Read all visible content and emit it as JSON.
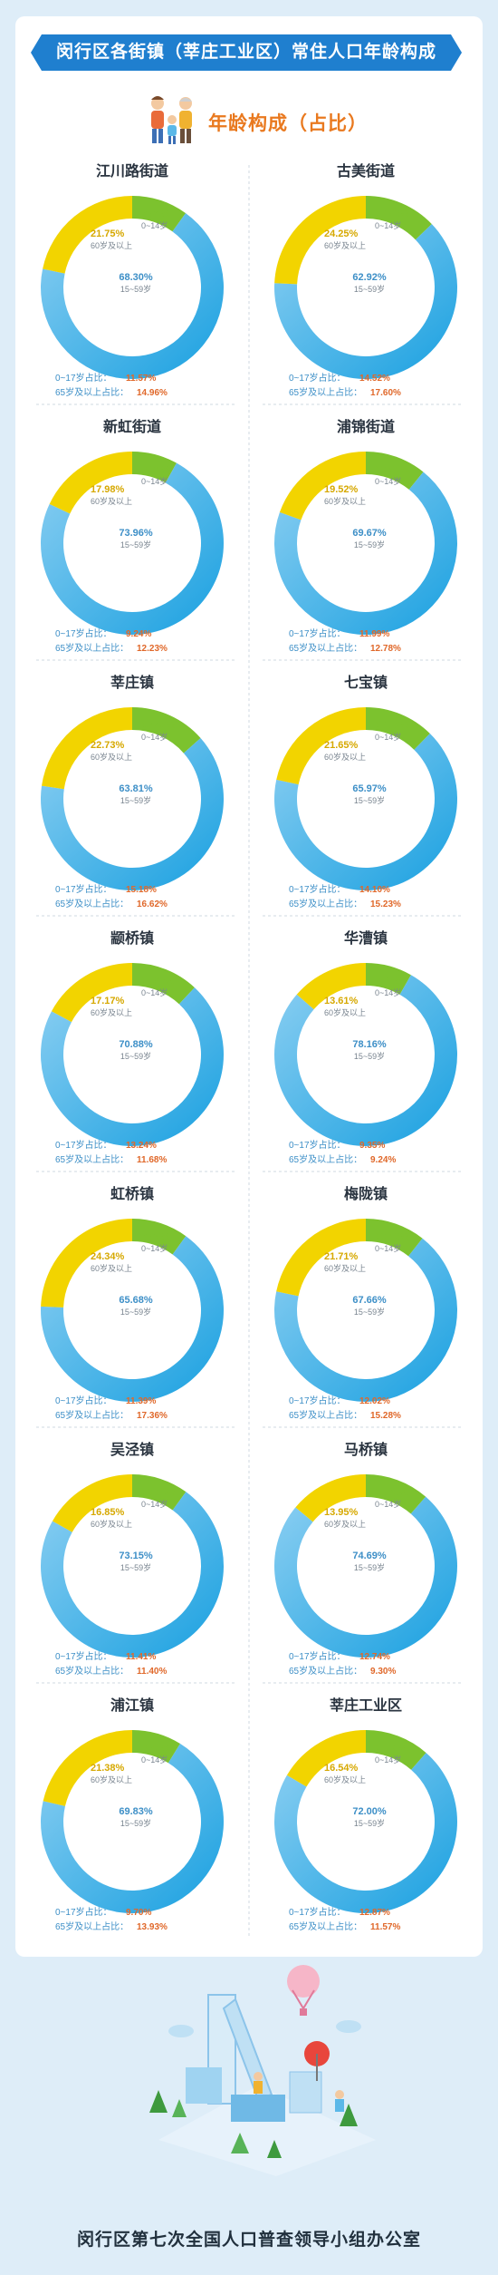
{
  "header": {
    "title": "闵行区各街镇（莘庄工业区）常住人口年龄构成"
  },
  "subtitle": "年龄构成（占比）",
  "footer": {
    "text": "闵行区第七次全国人口普查领导小组办公室"
  },
  "colors": {
    "age_0_14": "#7cc22e",
    "age_15_59_light": "#8ccff2",
    "age_15_59_dark": "#19a0e0",
    "age_60_plus": "#f2d400",
    "label_0_14": "#7cc22e",
    "label_15_59": "#3d8fc7",
    "label_60_plus": "#d6a800",
    "ratio_value": "#e0682a"
  },
  "labels": {
    "age_0_14": "0~14岁",
    "age_15_59": "15~59岁",
    "age_60_plus": "60岁及以上",
    "ratio_0_17": "0~17岁占比：",
    "ratio_65_plus": "65岁及以上占比："
  },
  "chart_data": [
    {
      "type": "pie",
      "title": "江川路街道",
      "categories": [
        "0~14岁",
        "15~59岁",
        "60岁及以上"
      ],
      "values": [
        9.94,
        68.3,
        21.75
      ],
      "ratio_0_17": "11.57%",
      "ratio_65_plus": "14.96%",
      "value_labels": [
        "9.94%",
        "68.30%",
        "21.75%"
      ]
    },
    {
      "type": "pie",
      "title": "古美街道",
      "categories": [
        "0~14岁",
        "15~59岁",
        "60岁及以上"
      ],
      "values": [
        12.83,
        62.92,
        24.25
      ],
      "ratio_0_17": "14.52%",
      "ratio_65_plus": "17.60%",
      "value_labels": [
        "12.83%",
        "62.92%",
        "24.25%"
      ]
    },
    {
      "type": "pie",
      "title": "新虹街道",
      "categories": [
        "0~14岁",
        "15~59岁",
        "60岁及以上"
      ],
      "values": [
        8.06,
        73.96,
        17.98
      ],
      "ratio_0_17": "9.24%",
      "ratio_65_plus": "12.23%",
      "value_labels": [
        "8.06%",
        "73.96%",
        "17.98%"
      ]
    },
    {
      "type": "pie",
      "title": "浦锦街道",
      "categories": [
        "0~14岁",
        "15~59岁",
        "60岁及以上"
      ],
      "values": [
        10.82,
        69.67,
        19.52
      ],
      "ratio_0_17": "11.99%",
      "ratio_65_plus": "12.78%",
      "value_labels": [
        "10.82%",
        "69.67%",
        "19.52%"
      ]
    },
    {
      "type": "pie",
      "title": "莘庄镇",
      "categories": [
        "0~14岁",
        "15~59岁",
        "60岁及以上"
      ],
      "values": [
        13.45,
        63.81,
        22.73
      ],
      "ratio_0_17": "15.18%",
      "ratio_65_plus": "16.62%",
      "value_labels": [
        "13.45%",
        "63.81%",
        "22.73%"
      ]
    },
    {
      "type": "pie",
      "title": "七宝镇",
      "categories": [
        "0~14岁",
        "15~59岁",
        "60岁及以上"
      ],
      "values": [
        12.38,
        65.97,
        21.65
      ],
      "ratio_0_17": "14.10%",
      "ratio_65_plus": "15.23%",
      "value_labels": [
        "12.38%",
        "65.97%",
        "21.65%"
      ]
    },
    {
      "type": "pie",
      "title": "颛桥镇",
      "categories": [
        "0~14岁",
        "15~59岁",
        "60岁及以上"
      ],
      "values": [
        11.95,
        70.88,
        17.17
      ],
      "ratio_0_17": "13.24%",
      "ratio_65_plus": "11.68%",
      "value_labels": [
        "11.95%",
        "70.88%",
        "17.17%"
      ]
    },
    {
      "type": "pie",
      "title": "华漕镇",
      "categories": [
        "0~14岁",
        "15~59岁",
        "60岁及以上"
      ],
      "values": [
        8.23,
        78.16,
        13.61
      ],
      "ratio_0_17": "9.35%",
      "ratio_65_plus": "9.24%",
      "value_labels": [
        "8.23%",
        "78.16%",
        "13.61%"
      ]
    },
    {
      "type": "pie",
      "title": "虹桥镇",
      "categories": [
        "0~14岁",
        "15~59岁",
        "60岁及以上"
      ],
      "values": [
        9.98,
        65.68,
        24.34
      ],
      "ratio_0_17": "11.39%",
      "ratio_65_plus": "17.36%",
      "value_labels": [
        "9.98%",
        "65.68%",
        "24.34%"
      ]
    },
    {
      "type": "pie",
      "title": "梅陇镇",
      "categories": [
        "0~14岁",
        "15~59岁",
        "60岁及以上"
      ],
      "values": [
        10.63,
        67.66,
        21.71
      ],
      "ratio_0_17": "12.02%",
      "ratio_65_plus": "15.28%",
      "value_labels": [
        "10.63%",
        "67.66%",
        "21.71%"
      ]
    },
    {
      "type": "pie",
      "title": "吴泾镇",
      "categories": [
        "0~14岁",
        "15~59岁",
        "60岁及以上"
      ],
      "values": [
        10.0,
        73.15,
        16.85
      ],
      "ratio_0_17": "11.41%",
      "ratio_65_plus": "11.40%",
      "value_labels": [
        "10.00%",
        "73.15%",
        "16.85%"
      ]
    },
    {
      "type": "pie",
      "title": "马桥镇",
      "categories": [
        "0~14岁",
        "15~59岁",
        "60岁及以上"
      ],
      "values": [
        11.36,
        74.69,
        13.95
      ],
      "ratio_0_17": "12.74%",
      "ratio_65_plus": "9.30%",
      "value_labels": [
        "11.36%",
        "74.69%",
        "13.95%"
      ]
    },
    {
      "type": "pie",
      "title": "浦江镇",
      "categories": [
        "0~14岁",
        "15~59岁",
        "60岁及以上"
      ],
      "values": [
        8.79,
        69.83,
        21.38
      ],
      "ratio_0_17": "9.70%",
      "ratio_65_plus": "13.93%",
      "value_labels": [
        "8.79%",
        "69.83%",
        "21.38%"
      ]
    },
    {
      "type": "pie",
      "title": "莘庄工业区",
      "categories": [
        "0~14岁",
        "15~59岁",
        "60岁及以上"
      ],
      "values": [
        11.46,
        72.0,
        16.54
      ],
      "ratio_0_17": "12.87%",
      "ratio_65_plus": "11.57%",
      "value_labels": [
        "11.46%",
        "72.00%",
        "16.54%"
      ]
    }
  ]
}
